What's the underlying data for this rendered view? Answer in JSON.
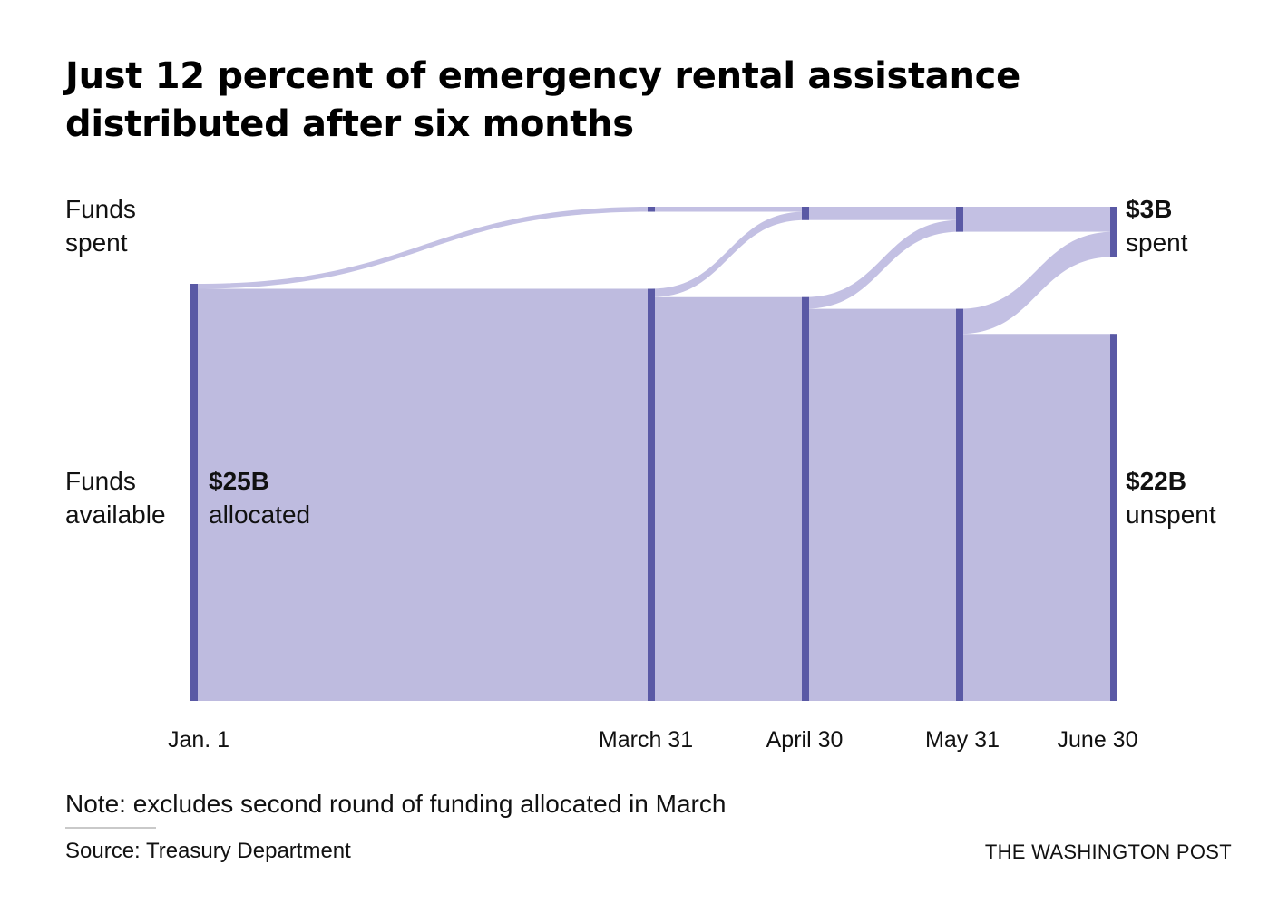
{
  "title": {
    "line1": "Just 12 percent of emergency rental assistance",
    "line2": "distributed after six months"
  },
  "row_labels": {
    "spent": [
      "Funds",
      "spent"
    ],
    "available": [
      "Funds",
      "available"
    ]
  },
  "node_labels": {
    "allocated": {
      "value": "$25B",
      "desc": "allocated"
    },
    "spent": {
      "value": "$3B",
      "desc": "spent"
    },
    "unspent": {
      "value": "$22B",
      "desc": "unspent"
    }
  },
  "colors": {
    "flow": "#bebbdf",
    "spent_flow": "#c3c0e3",
    "node": "#5a59a5"
  },
  "chart_data": {
    "type": "sankey",
    "title": "Just 12 percent of emergency rental assistance distributed after six months",
    "units": "billions of dollars",
    "total_allocated": 25,
    "dates": [
      "Jan. 1",
      "March 31",
      "April 30",
      "May 31",
      "June 30"
    ],
    "cumulative_spent": [
      0,
      0.3,
      0.8,
      1.5,
      3.0
    ],
    "available": [
      25,
      24.7,
      24.2,
      23.5,
      22.0
    ],
    "final": {
      "spent": 3,
      "unspent": 22
    }
  },
  "footer": {
    "note": "Note: excludes second round of funding allocated in March",
    "source": "Source: Treasury Department",
    "brand": "THE WASHINGTON POST"
  }
}
